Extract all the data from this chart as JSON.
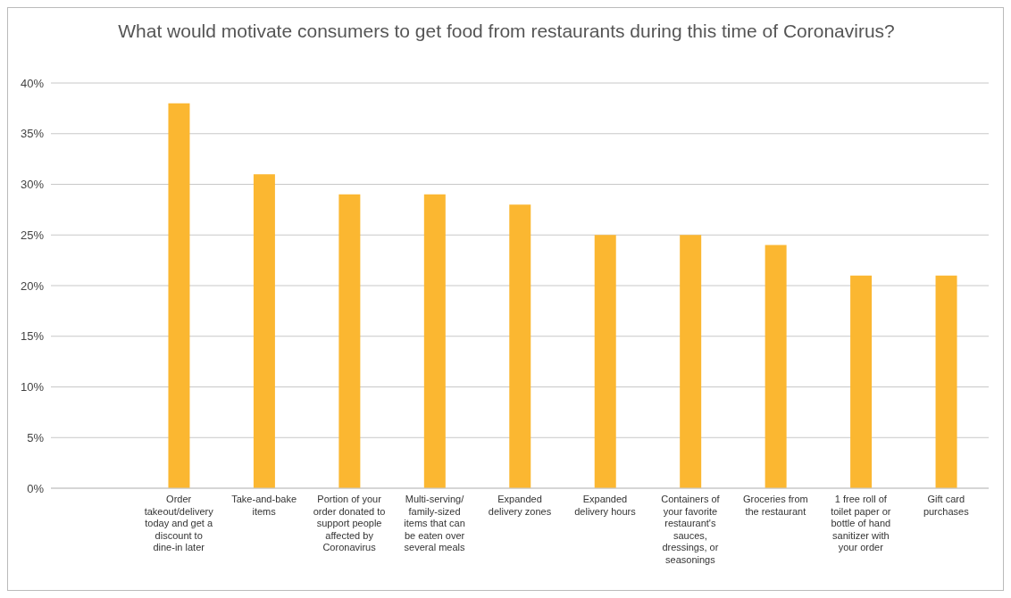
{
  "chart_data": {
    "type": "bar",
    "title": "What would motivate consumers to get food from restaurants during this time of Coronavirus?",
    "categories": [
      null,
      "Order takeout/delivery today and get a discount to dine-in later",
      "Take-and-bake items",
      "Portion of your order donated to support people affected by Coronavirus",
      "Multi-serving/ family-sized items that can be eaten over several meals",
      "Expanded delivery zones",
      "Expanded delivery hours",
      "Containers of your favorite restaurant's sauces, dressings, or seasonings",
      "Groceries from the restaurant",
      "1 free roll of toilet paper or bottle of hand sanitizer with your order",
      "Gift card purchases"
    ],
    "values": [
      null,
      38,
      31,
      29,
      29,
      28,
      25,
      25,
      24,
      21,
      21
    ],
    "color": "#fbb731",
    "ylim": [
      0,
      40
    ],
    "yticks": [
      {
        "value": 0,
        "label": "0%"
      },
      {
        "value": 5,
        "label": "5%"
      },
      {
        "value": 10,
        "label": "10%"
      },
      {
        "value": 15,
        "label": "15%"
      },
      {
        "value": 20,
        "label": "20%"
      },
      {
        "value": 25,
        "label": "25%"
      },
      {
        "value": 30,
        "label": "30%"
      },
      {
        "value": 35,
        "label": "35%"
      },
      {
        "value": 40,
        "label": "40%"
      }
    ],
    "grid": "y"
  }
}
